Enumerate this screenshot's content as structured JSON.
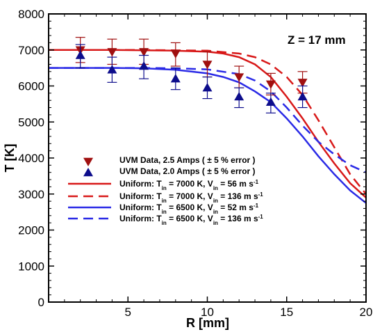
{
  "chart_data": {
    "type": "line",
    "xlabel": "R [mm]",
    "ylabel": "T [K]",
    "annotation": "Z = 17 mm",
    "xlim": [
      0,
      20
    ],
    "ylim": [
      0,
      8000
    ],
    "xticks": [
      5,
      10,
      15,
      20
    ],
    "yticks": [
      0,
      1000,
      2000,
      3000,
      4000,
      5000,
      6000,
      7000,
      8000
    ],
    "grid": false,
    "legend_position": "center-left",
    "series": [
      {
        "name": "UVM Data, 2.5 Amps ( ± 5 % error )",
        "legend_parts": [
          [
            "UVM Data, 2.5 Amps ( ± 5 % error )",
            "n"
          ]
        ],
        "kind": "scatter",
        "marker": "triangle-down",
        "color": "#a01010",
        "x": [
          2,
          4,
          6,
          8,
          10,
          12,
          14,
          16
        ],
        "y": [
          7000,
          6950,
          6950,
          6900,
          6600,
          6250,
          6050,
          6100
        ],
        "err_low": [
          6650,
          6600,
          6600,
          6550,
          6250,
          5950,
          5750,
          5800
        ],
        "err_high": [
          7350,
          7300,
          7300,
          7200,
          6950,
          6550,
          6350,
          6400
        ]
      },
      {
        "name": "UVM Data, 2.0 Amps ( ± 5 % error )",
        "legend_parts": [
          [
            "UVM Data, 2.0 Amps ( ± 5 % error )",
            "n"
          ]
        ],
        "kind": "scatter",
        "marker": "triangle-up",
        "color": "#0d0d8c",
        "x": [
          2,
          4,
          6,
          8,
          10,
          12,
          14,
          16
        ],
        "y": [
          6850,
          6450,
          6550,
          6200,
          5950,
          5700,
          5550,
          5700
        ],
        "err_low": [
          6500,
          6100,
          6200,
          5900,
          5650,
          5400,
          5250,
          5400
        ],
        "err_high": [
          7150,
          6800,
          6850,
          6500,
          6250,
          5950,
          5800,
          6000
        ]
      },
      {
        "name": "Uniform: Tin = 7000 K, Vin = 56 m s-1",
        "legend_parts": [
          [
            "Uniform: T",
            "n"
          ],
          [
            "in",
            "sub"
          ],
          [
            " = 7000 K, V",
            "n"
          ],
          [
            "in",
            "sub"
          ],
          [
            " = 56 m s",
            "n"
          ],
          [
            "-1",
            "sup"
          ]
        ],
        "kind": "line",
        "dash": "solid",
        "color": "#d81818",
        "x": [
          0,
          2,
          4,
          6,
          8,
          10,
          11,
          12,
          13,
          14,
          15,
          16,
          17,
          18,
          19,
          20
        ],
        "y": [
          7000,
          7000,
          7000,
          6990,
          6980,
          6950,
          6900,
          6800,
          6600,
          6250,
          5700,
          5100,
          4450,
          3850,
          3300,
          2900
        ]
      },
      {
        "name": "Uniform: Tin = 7000 K, Vin = 136 m s-1",
        "legend_parts": [
          [
            "Uniform: T",
            "n"
          ],
          [
            "in",
            "sub"
          ],
          [
            " = 7000 K, V",
            "n"
          ],
          [
            "in",
            "sub"
          ],
          [
            " = 136 m s",
            "n"
          ],
          [
            "-1",
            "sup"
          ]
        ],
        "kind": "line",
        "dash": "dashed",
        "color": "#d81818",
        "x": [
          0,
          2,
          4,
          6,
          8,
          10,
          12,
          13,
          14,
          15,
          16,
          17,
          18,
          19,
          20
        ],
        "y": [
          7000,
          7000,
          7000,
          7000,
          6990,
          6980,
          6900,
          6800,
          6600,
          6250,
          5750,
          5050,
          4300,
          3550,
          3000
        ]
      },
      {
        "name": "Uniform: Tin = 6500 K, Vin = 52 m s-1",
        "legend_parts": [
          [
            "Uniform: T",
            "n"
          ],
          [
            "in",
            "sub"
          ],
          [
            " = 6500 K, V",
            "n"
          ],
          [
            "in",
            "sub"
          ],
          [
            " = 52 m s",
            "n"
          ],
          [
            "-1",
            "sup"
          ]
        ],
        "kind": "line",
        "dash": "solid",
        "color": "#2a2ae6",
        "x": [
          0,
          2,
          4,
          6,
          8,
          10,
          11,
          12,
          13,
          14,
          15,
          16,
          17,
          18,
          19,
          20
        ],
        "y": [
          6500,
          6500,
          6500,
          6490,
          6450,
          6350,
          6250,
          6100,
          5850,
          5550,
          5100,
          4600,
          4050,
          3550,
          3100,
          2750
        ]
      },
      {
        "name": "Uniform: Tin = 6500 K, Vin = 136 m s-1",
        "legend_parts": [
          [
            "Uniform: T",
            "n"
          ],
          [
            "in",
            "sub"
          ],
          [
            " = 6500 K, V",
            "n"
          ],
          [
            "in",
            "sub"
          ],
          [
            " = 136 m s",
            "n"
          ],
          [
            "-1",
            "sup"
          ]
        ],
        "kind": "line",
        "dash": "dashed",
        "color": "#2a2ae6",
        "x": [
          0,
          2,
          4,
          6,
          8,
          10,
          12,
          13,
          14,
          15,
          16,
          17,
          18,
          19,
          20
        ],
        "y": [
          6500,
          6500,
          6500,
          6500,
          6490,
          6460,
          6330,
          6150,
          5850,
          5400,
          4900,
          4450,
          4100,
          3800,
          3600
        ]
      }
    ]
  }
}
